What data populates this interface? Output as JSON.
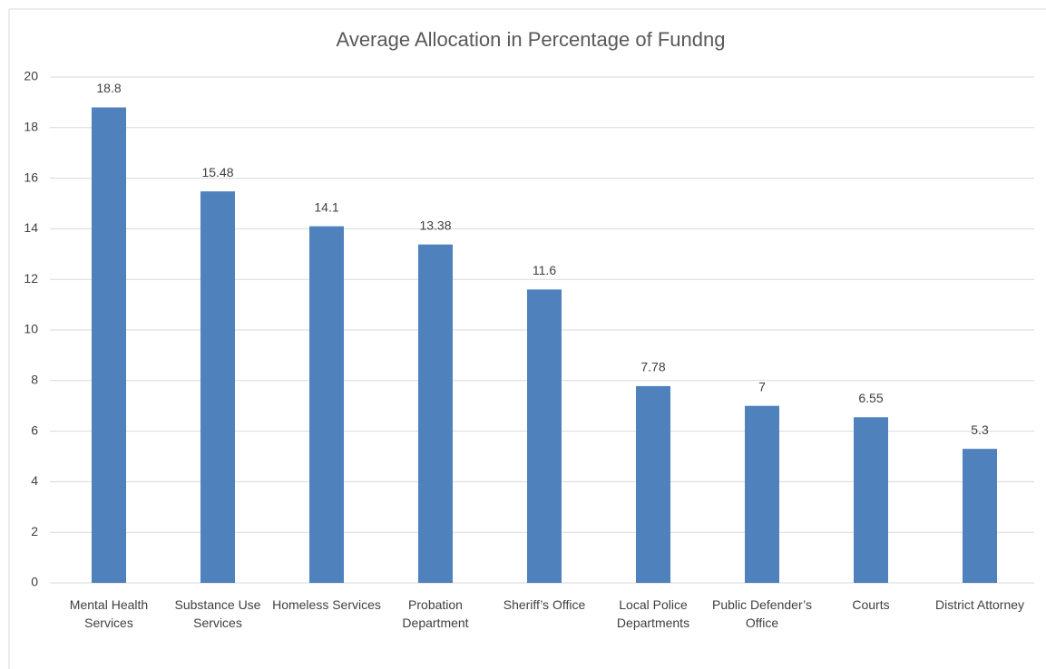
{
  "chart_data": {
    "type": "bar",
    "title": "Average Allocation in Percentage of Fundng",
    "categories": [
      "Mental Health Services",
      "Substance Use Services",
      "Homeless Services",
      "Probation Department",
      "Sheriff’s Office",
      "Local Police Departments",
      "Public Defender’s Office",
      "Courts",
      "District Attorney"
    ],
    "values": [
      18.8,
      15.48,
      14.1,
      13.38,
      11.6,
      7.78,
      7,
      6.55,
      5.3
    ],
    "color": "#4f81bd",
    "ylim": [
      0,
      20
    ],
    "yticks": [
      0,
      2,
      4,
      6,
      8,
      10,
      12,
      14,
      16,
      18,
      20
    ],
    "grid": true
  }
}
